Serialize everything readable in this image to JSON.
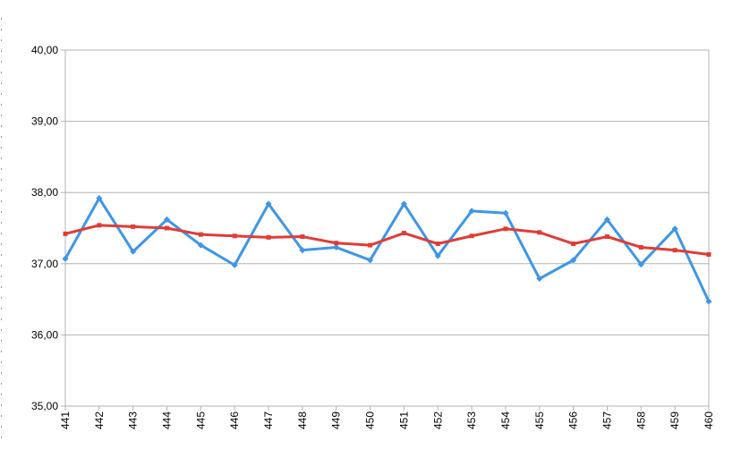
{
  "chart_data": {
    "type": "line",
    "title": "",
    "xlabel": "",
    "ylabel": "",
    "ylim": [
      35.0,
      40.0
    ],
    "y_ticks": [
      "35,00",
      "36,00",
      "37,00",
      "38,00",
      "39,00",
      "40,00"
    ],
    "y_tick_values": [
      35,
      36,
      37,
      38,
      39,
      40
    ],
    "grid": true,
    "legend": "none",
    "categories": [
      "441",
      "442",
      "443",
      "444",
      "445",
      "446",
      "447",
      "448",
      "449",
      "450",
      "451",
      "452",
      "453",
      "454",
      "455",
      "456",
      "457",
      "458",
      "459",
      "460"
    ],
    "series": [
      {
        "color": "#3d96e6",
        "values": [
          37.07,
          37.92,
          37.17,
          37.62,
          37.26,
          36.98,
          37.84,
          37.19,
          37.23,
          37.05,
          37.84,
          37.11,
          37.74,
          37.71,
          36.79,
          37.05,
          37.62,
          36.99,
          37.49,
          36.47
        ]
      },
      {
        "color": "#e03c36",
        "values": [
          37.42,
          37.54,
          37.52,
          37.5,
          37.41,
          37.39,
          37.37,
          37.38,
          37.29,
          37.26,
          37.43,
          37.28,
          37.39,
          37.49,
          37.44,
          37.28,
          37.38,
          37.23,
          37.19,
          37.13
        ]
      }
    ]
  }
}
